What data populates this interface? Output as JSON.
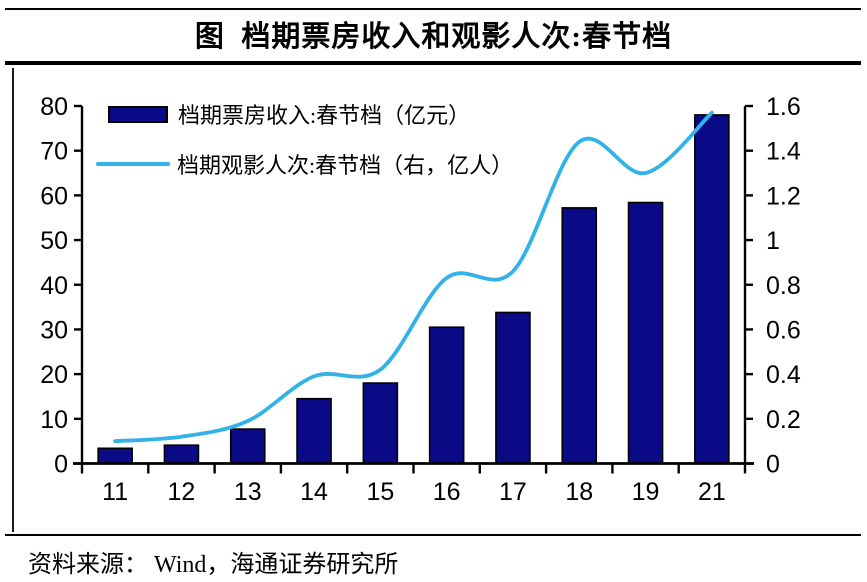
{
  "title": "图  档期票房收入和观影人次:春节档",
  "source": "资料来源： Wind，海通证券研究所",
  "legend": [
    {
      "type": "bar",
      "label": "档期票房收入:春节档（亿元）"
    },
    {
      "type": "line",
      "label": "档期观影人次:春节档（右，亿人）"
    }
  ],
  "colors": {
    "bar_fill": "#0a0a87",
    "bar_outline": "#000000",
    "line": "#31b2e8",
    "axis": "#000000",
    "text": "#000000"
  },
  "chart_data": {
    "type": "bar+line combo",
    "categories": [
      "11",
      "12",
      "13",
      "14",
      "15",
      "16",
      "17",
      "18",
      "19",
      "21"
    ],
    "series": [
      {
        "name": "档期票房收入:春节档（亿元）",
        "type": "bar",
        "axis": "left",
        "values": [
          3.4,
          4.1,
          7.7,
          14.5,
          18.0,
          30.5,
          33.8,
          57.2,
          58.4,
          78.0
        ]
      },
      {
        "name": "档期观影人次:春节档（右，亿人）",
        "type": "line",
        "axis": "right",
        "values": [
          0.1,
          0.12,
          0.19,
          0.39,
          0.42,
          0.83,
          0.86,
          1.44,
          1.3,
          1.57
        ]
      }
    ],
    "left_axis": {
      "min": 0,
      "max": 80,
      "tick_labels": [
        "0",
        "10",
        "20",
        "30",
        "40",
        "50",
        "60",
        "70",
        "80"
      ]
    },
    "right_axis": {
      "min": 0,
      "max": 1.6,
      "tick_labels": [
        "0",
        "0.2",
        "0.4",
        "0.6",
        "0.8",
        "1",
        "1.2",
        "1.4",
        "1.6"
      ]
    },
    "grid": false,
    "legend_position": "top-left",
    "line_smoothing": true
  }
}
